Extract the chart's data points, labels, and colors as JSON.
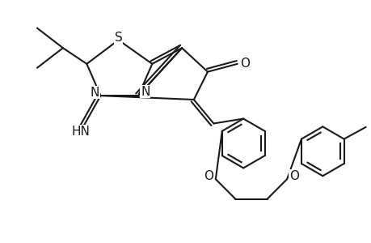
{
  "background_color": "#ffffff",
  "line_color": "#1a1a1a",
  "line_width": 1.5,
  "font_size": 10,
  "figsize": [
    4.6,
    3.0
  ],
  "dpi": 100,
  "xlim": [
    0,
    9.2
  ],
  "ylim": [
    0,
    6.0
  ]
}
